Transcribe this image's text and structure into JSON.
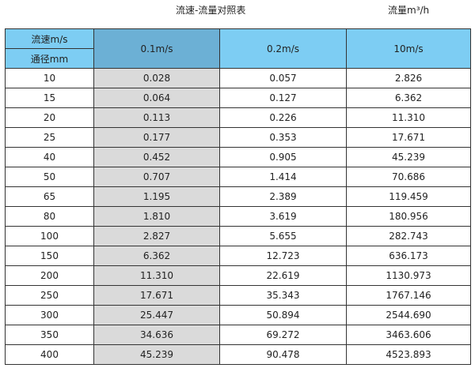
{
  "title": "流速-流量对照表",
  "unit_label": "流量m³/h",
  "colors": {
    "header": "#7dcdf3",
    "selected_header": "#6cb0d5",
    "selected_column": "#dadada"
  },
  "header": {
    "velocity_label": "流速m/s",
    "diameter_label": "通径mm",
    "columns": [
      "0.1m/s",
      "0.2m/s",
      "10m/s"
    ]
  },
  "rows": [
    [
      "10",
      "0.028",
      "0.057",
      "2.826"
    ],
    [
      "15",
      "0.064",
      "0.127",
      "6.362"
    ],
    [
      "20",
      "0.113",
      "0.226",
      "11.310"
    ],
    [
      "25",
      "0.177",
      "0.353",
      "17.671"
    ],
    [
      "40",
      "0.452",
      "0.905",
      "45.239"
    ],
    [
      "50",
      "0.707",
      "1.414",
      "70.686"
    ],
    [
      "65",
      "1.195",
      "2.389",
      "119.459"
    ],
    [
      "80",
      "1.810",
      "3.619",
      "180.956"
    ],
    [
      "100",
      "2.827",
      "5.655",
      "282.743"
    ],
    [
      "150",
      "6.362",
      "12.723",
      "636.173"
    ],
    [
      "200",
      "11.310",
      "22.619",
      "1130.973"
    ],
    [
      "250",
      "17.671",
      "35.343",
      "1767.146"
    ],
    [
      "300",
      "25.447",
      "50.894",
      "2544.690"
    ],
    [
      "350",
      "34.636",
      "69.272",
      "3463.606"
    ],
    [
      "400",
      "45.239",
      "90.478",
      "4523.893"
    ]
  ]
}
